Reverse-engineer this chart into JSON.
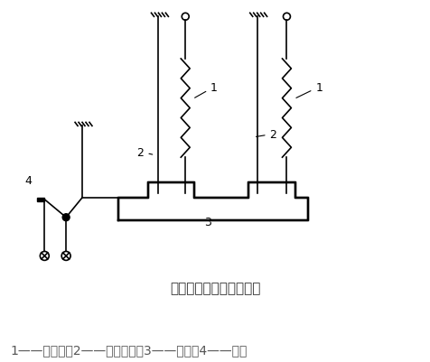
{
  "title": "热继电器工作原理示意图",
  "caption": "1——热元件，2——双金属片，3——导板，4——触点",
  "bg_color": "#ffffff",
  "line_color": "#000000",
  "title_fontsize": 11,
  "caption_fontsize": 10
}
